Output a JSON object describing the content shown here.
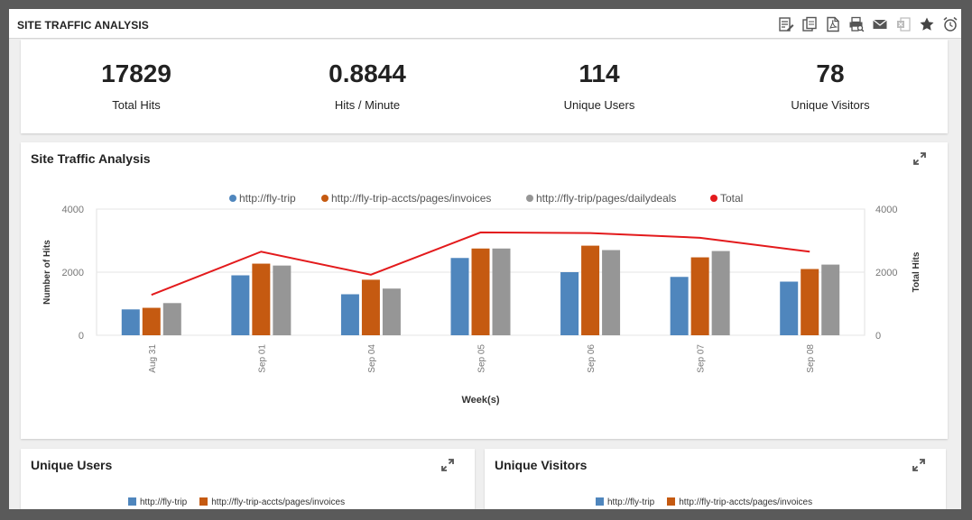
{
  "app": {
    "title": "SITE TRAFFIC ANALYSIS"
  },
  "toolbar": {
    "icons": [
      "edit-report-icon",
      "copy-report-icon",
      "export-pdf-icon",
      "print-preview-icon",
      "email-icon",
      "export-excel-icon",
      "favorite-star-icon",
      "alarm-icon"
    ]
  },
  "kpis": [
    {
      "value": "17829",
      "label": "Total Hits"
    },
    {
      "value": "0.8844",
      "label": "Hits / Minute"
    },
    {
      "value": "114",
      "label": "Unique Users"
    },
    {
      "value": "78",
      "label": "Unique Visitors"
    }
  ],
  "chart_card": {
    "title": "Site Traffic Analysis"
  },
  "chart_data": {
    "type": "bar",
    "categories": [
      "Aug 31",
      "Sep 01",
      "Sep 04",
      "Sep 05",
      "Sep 06",
      "Sep 07",
      "Sep 08"
    ],
    "series": [
      {
        "name": "http://fly-trip",
        "color": "#4f86bd",
        "values": [
          820,
          1900,
          1300,
          2450,
          2000,
          1850,
          1700
        ]
      },
      {
        "name": "http://fly-trip-accts/pages/invoices",
        "color": "#c55a11",
        "values": [
          870,
          2270,
          1760,
          2750,
          2840,
          2470,
          2100
        ]
      },
      {
        "name": "http://fly-trip/pages/dailydeals",
        "color": "#969696",
        "values": [
          1020,
          2210,
          1480,
          2750,
          2700,
          2670,
          2240
        ]
      },
      {
        "name": "Total",
        "color": "#e31a1c",
        "type": "line",
        "axis": "right",
        "values": [
          1280,
          2650,
          1920,
          3260,
          3240,
          3090,
          2650
        ]
      }
    ],
    "xlabel": "Week(s)",
    "ylabel": "Number of Hits",
    "y2label": "Total Hits",
    "ylim": [
      0,
      4000
    ],
    "y2lim": [
      0,
      4000
    ],
    "yticks": [
      "0",
      "2000",
      "4000"
    ],
    "y2ticks": [
      "0",
      "2000",
      "4000"
    ],
    "grid": true,
    "legend_position": "top"
  },
  "users_card": {
    "title": "Unique Users",
    "legend": [
      {
        "name": "http://fly-trip",
        "color": "#4f86bd"
      },
      {
        "name": "http://fly-trip-accts/pages/invoices",
        "color": "#c55a11"
      }
    ]
  },
  "visitors_card": {
    "title": "Unique Visitors",
    "legend": [
      {
        "name": "http://fly-trip",
        "color": "#4f86bd"
      },
      {
        "name": "http://fly-trip-accts/pages/invoices",
        "color": "#c55a11"
      }
    ]
  }
}
